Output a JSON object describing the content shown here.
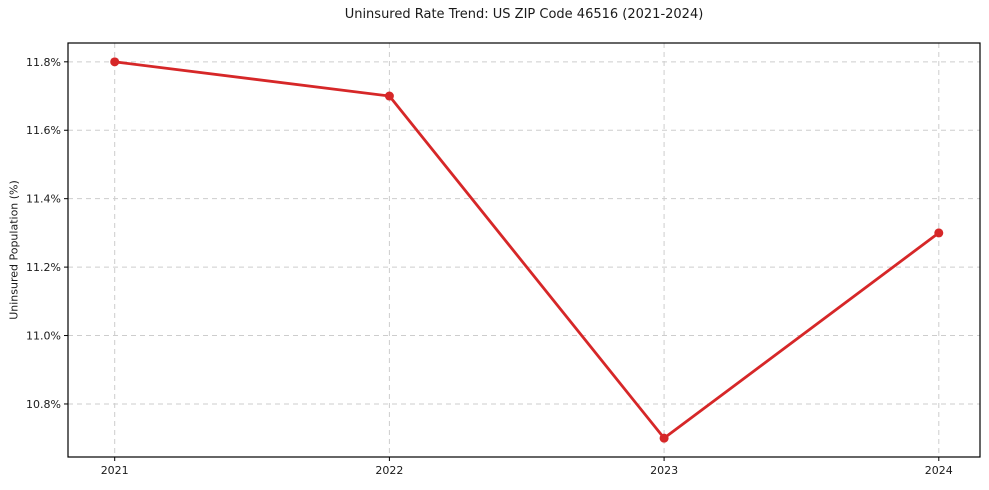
{
  "chart_data": {
    "type": "line",
    "title": "Uninsured Rate Trend: US ZIP Code 46516 (2021-2024)",
    "xlabel": "",
    "ylabel": "Uninsured Population (%)",
    "x": [
      2021,
      2022,
      2023,
      2024
    ],
    "x_tick_labels": [
      "2021",
      "2022",
      "2023",
      "2024"
    ],
    "y_ticks": [
      10.8,
      11.0,
      11.2,
      11.4,
      11.6,
      11.8
    ],
    "y_tick_labels": [
      "10.8%",
      "11.0%",
      "11.2%",
      "11.4%",
      "11.6%",
      "11.8%"
    ],
    "series": [
      {
        "name": "Uninsured Population (%)",
        "values": [
          11.8,
          11.7,
          10.7,
          11.3
        ]
      }
    ],
    "xlim": [
      2020.83,
      2024.15
    ],
    "ylim": [
      10.645,
      11.855
    ],
    "grid": true,
    "grid_style": "dashed",
    "legend": false,
    "marker": "circle",
    "colors": {
      "line": "#d62728",
      "marker": "#d62728",
      "grid": "#cdcdcd",
      "spine": "#000000",
      "text": "#1a1a1a",
      "background": "#ffffff"
    }
  }
}
